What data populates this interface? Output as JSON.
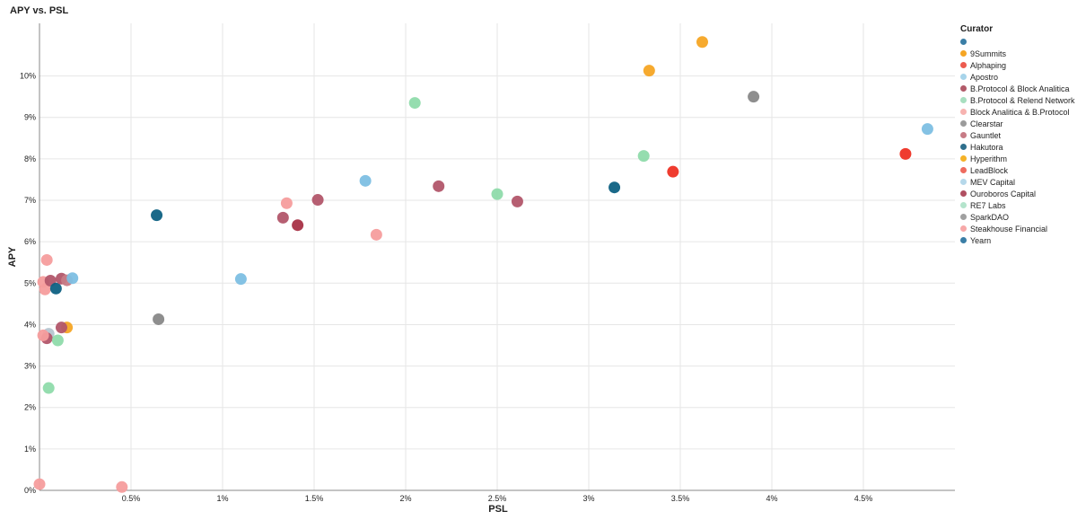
{
  "chart_data": {
    "type": "scatter",
    "title": "APY vs. PSL",
    "xlabel": "PSL",
    "ylabel": "APY",
    "xlim": [
      0,
      5
    ],
    "ylim": [
      0,
      11
    ],
    "x_ticks": [
      {
        "value": 0.5,
        "label": "0.5%"
      },
      {
        "value": 1,
        "label": "1%"
      },
      {
        "value": 1.5,
        "label": "1.5%"
      },
      {
        "value": 2,
        "label": "2%"
      },
      {
        "value": 2.5,
        "label": "2.5%"
      },
      {
        "value": 3,
        "label": "3%"
      },
      {
        "value": 3.5,
        "label": "3.5%"
      },
      {
        "value": 4,
        "label": "4%"
      },
      {
        "value": 4.5,
        "label": "4.5%"
      }
    ],
    "y_ticks": [
      {
        "value": 0,
        "label": "0%"
      },
      {
        "value": 1,
        "label": "1%"
      },
      {
        "value": 2,
        "label": "2%"
      },
      {
        "value": 3,
        "label": "3%"
      },
      {
        "value": 4,
        "label": "4%"
      },
      {
        "value": 5,
        "label": "5%"
      },
      {
        "value": 6,
        "label": "6%"
      },
      {
        "value": 7,
        "label": "7%"
      },
      {
        "value": 8,
        "label": "8%"
      },
      {
        "value": 9,
        "label": "9%"
      },
      {
        "value": 10,
        "label": "10%"
      }
    ],
    "grid": true,
    "legend": {
      "title": "Curator",
      "position": "right",
      "entries": [
        {
          "name": "",
          "color": "#3a7ea6"
        },
        {
          "name": "9Summits",
          "color": "#f5a524"
        },
        {
          "name": "Alphaping",
          "color": "#ec5b4f"
        },
        {
          "name": "Apostro",
          "color": "#a7d4ea"
        },
        {
          "name": "B.Protocol & Block Analitica",
          "color": "#b25a69"
        },
        {
          "name": "B.Protocol & Relend Network",
          "color": "#a8dfc0"
        },
        {
          "name": "Block Analitica & B.Protocol",
          "color": "#f7b3b0"
        },
        {
          "name": "Clearstar",
          "color": "#9b9b9b"
        },
        {
          "name": "Gauntlet",
          "color": "#c77b86"
        },
        {
          "name": "Hakutora",
          "color": "#2e6f8c"
        },
        {
          "name": "Hyperithm",
          "color": "#f5b227"
        },
        {
          "name": "LeadBlock",
          "color": "#ee6b5e"
        },
        {
          "name": "MEV Capital",
          "color": "#b5d8ea"
        },
        {
          "name": "Ouroboros Capital",
          "color": "#b04f61"
        },
        {
          "name": "RE7 Labs",
          "color": "#b4e4cc"
        },
        {
          "name": "SparkDAO",
          "color": "#a0a0a0"
        },
        {
          "name": "Steakhouse Financial",
          "color": "#f7a8a8"
        },
        {
          "name": "Yearn",
          "color": "#3a7ea6"
        }
      ]
    },
    "points": [
      {
        "x": 3.62,
        "y": 10.82,
        "color": "#f5a524"
      },
      {
        "x": 3.33,
        "y": 10.13,
        "color": "#f5a524"
      },
      {
        "x": 3.9,
        "y": 9.5,
        "color": "#888888"
      },
      {
        "x": 4.85,
        "y": 8.72,
        "color": "#7dbfe3"
      },
      {
        "x": 4.73,
        "y": 8.12,
        "color": "#ee3124"
      },
      {
        "x": 3.46,
        "y": 7.69,
        "color": "#ee3124"
      },
      {
        "x": 3.14,
        "y": 7.31,
        "color": "#0e6183"
      },
      {
        "x": 3.3,
        "y": 8.07,
        "color": "#8fdbab"
      },
      {
        "x": 2.05,
        "y": 9.35,
        "color": "#8fdbab"
      },
      {
        "x": 2.5,
        "y": 7.15,
        "color": "#8fdbab"
      },
      {
        "x": 2.18,
        "y": 7.34,
        "color": "#b2566a"
      },
      {
        "x": 2.61,
        "y": 6.97,
        "color": "#b2566a"
      },
      {
        "x": 1.78,
        "y": 7.47,
        "color": "#7dbfe3"
      },
      {
        "x": 1.84,
        "y": 6.17,
        "color": "#f59d9d"
      },
      {
        "x": 1.52,
        "y": 7.01,
        "color": "#b2566a"
      },
      {
        "x": 1.35,
        "y": 6.93,
        "color": "#f59d9d"
      },
      {
        "x": 1.33,
        "y": 6.58,
        "color": "#b2566a"
      },
      {
        "x": 1.41,
        "y": 6.4,
        "color": "#a83246"
      },
      {
        "x": 1.1,
        "y": 5.1,
        "color": "#7dbfe3"
      },
      {
        "x": 0.64,
        "y": 6.64,
        "color": "#0e6183"
      },
      {
        "x": 0.65,
        "y": 4.13,
        "color": "#888888"
      },
      {
        "x": 0.45,
        "y": 0.08,
        "color": "#f59d9d"
      },
      {
        "x": 0.0,
        "y": 0.15,
        "color": "#f59d9d"
      },
      {
        "x": 0.05,
        "y": 2.47,
        "color": "#8fdbab"
      },
      {
        "x": 0.04,
        "y": 5.56,
        "color": "#f59d9d"
      },
      {
        "x": 0.02,
        "y": 5.03,
        "color": "#f59d9d"
      },
      {
        "x": 0.03,
        "y": 4.85,
        "color": "#f59d9d"
      },
      {
        "x": 0.06,
        "y": 5.06,
        "color": "#b2566a"
      },
      {
        "x": 0.09,
        "y": 4.87,
        "color": "#0e6183"
      },
      {
        "x": 0.12,
        "y": 5.11,
        "color": "#b2566a"
      },
      {
        "x": 0.15,
        "y": 5.07,
        "color": "#c77b86"
      },
      {
        "x": 0.18,
        "y": 5.12,
        "color": "#7dbfe3"
      },
      {
        "x": 0.15,
        "y": 3.93,
        "color": "#f5a524"
      },
      {
        "x": 0.12,
        "y": 3.93,
        "color": "#b2566a"
      },
      {
        "x": 0.05,
        "y": 3.78,
        "color": "#b5c5d0"
      },
      {
        "x": 0.04,
        "y": 3.67,
        "color": "#b2566a"
      },
      {
        "x": 0.02,
        "y": 3.74,
        "color": "#f59d9d"
      },
      {
        "x": 0.1,
        "y": 3.62,
        "color": "#8fdbab"
      }
    ]
  }
}
